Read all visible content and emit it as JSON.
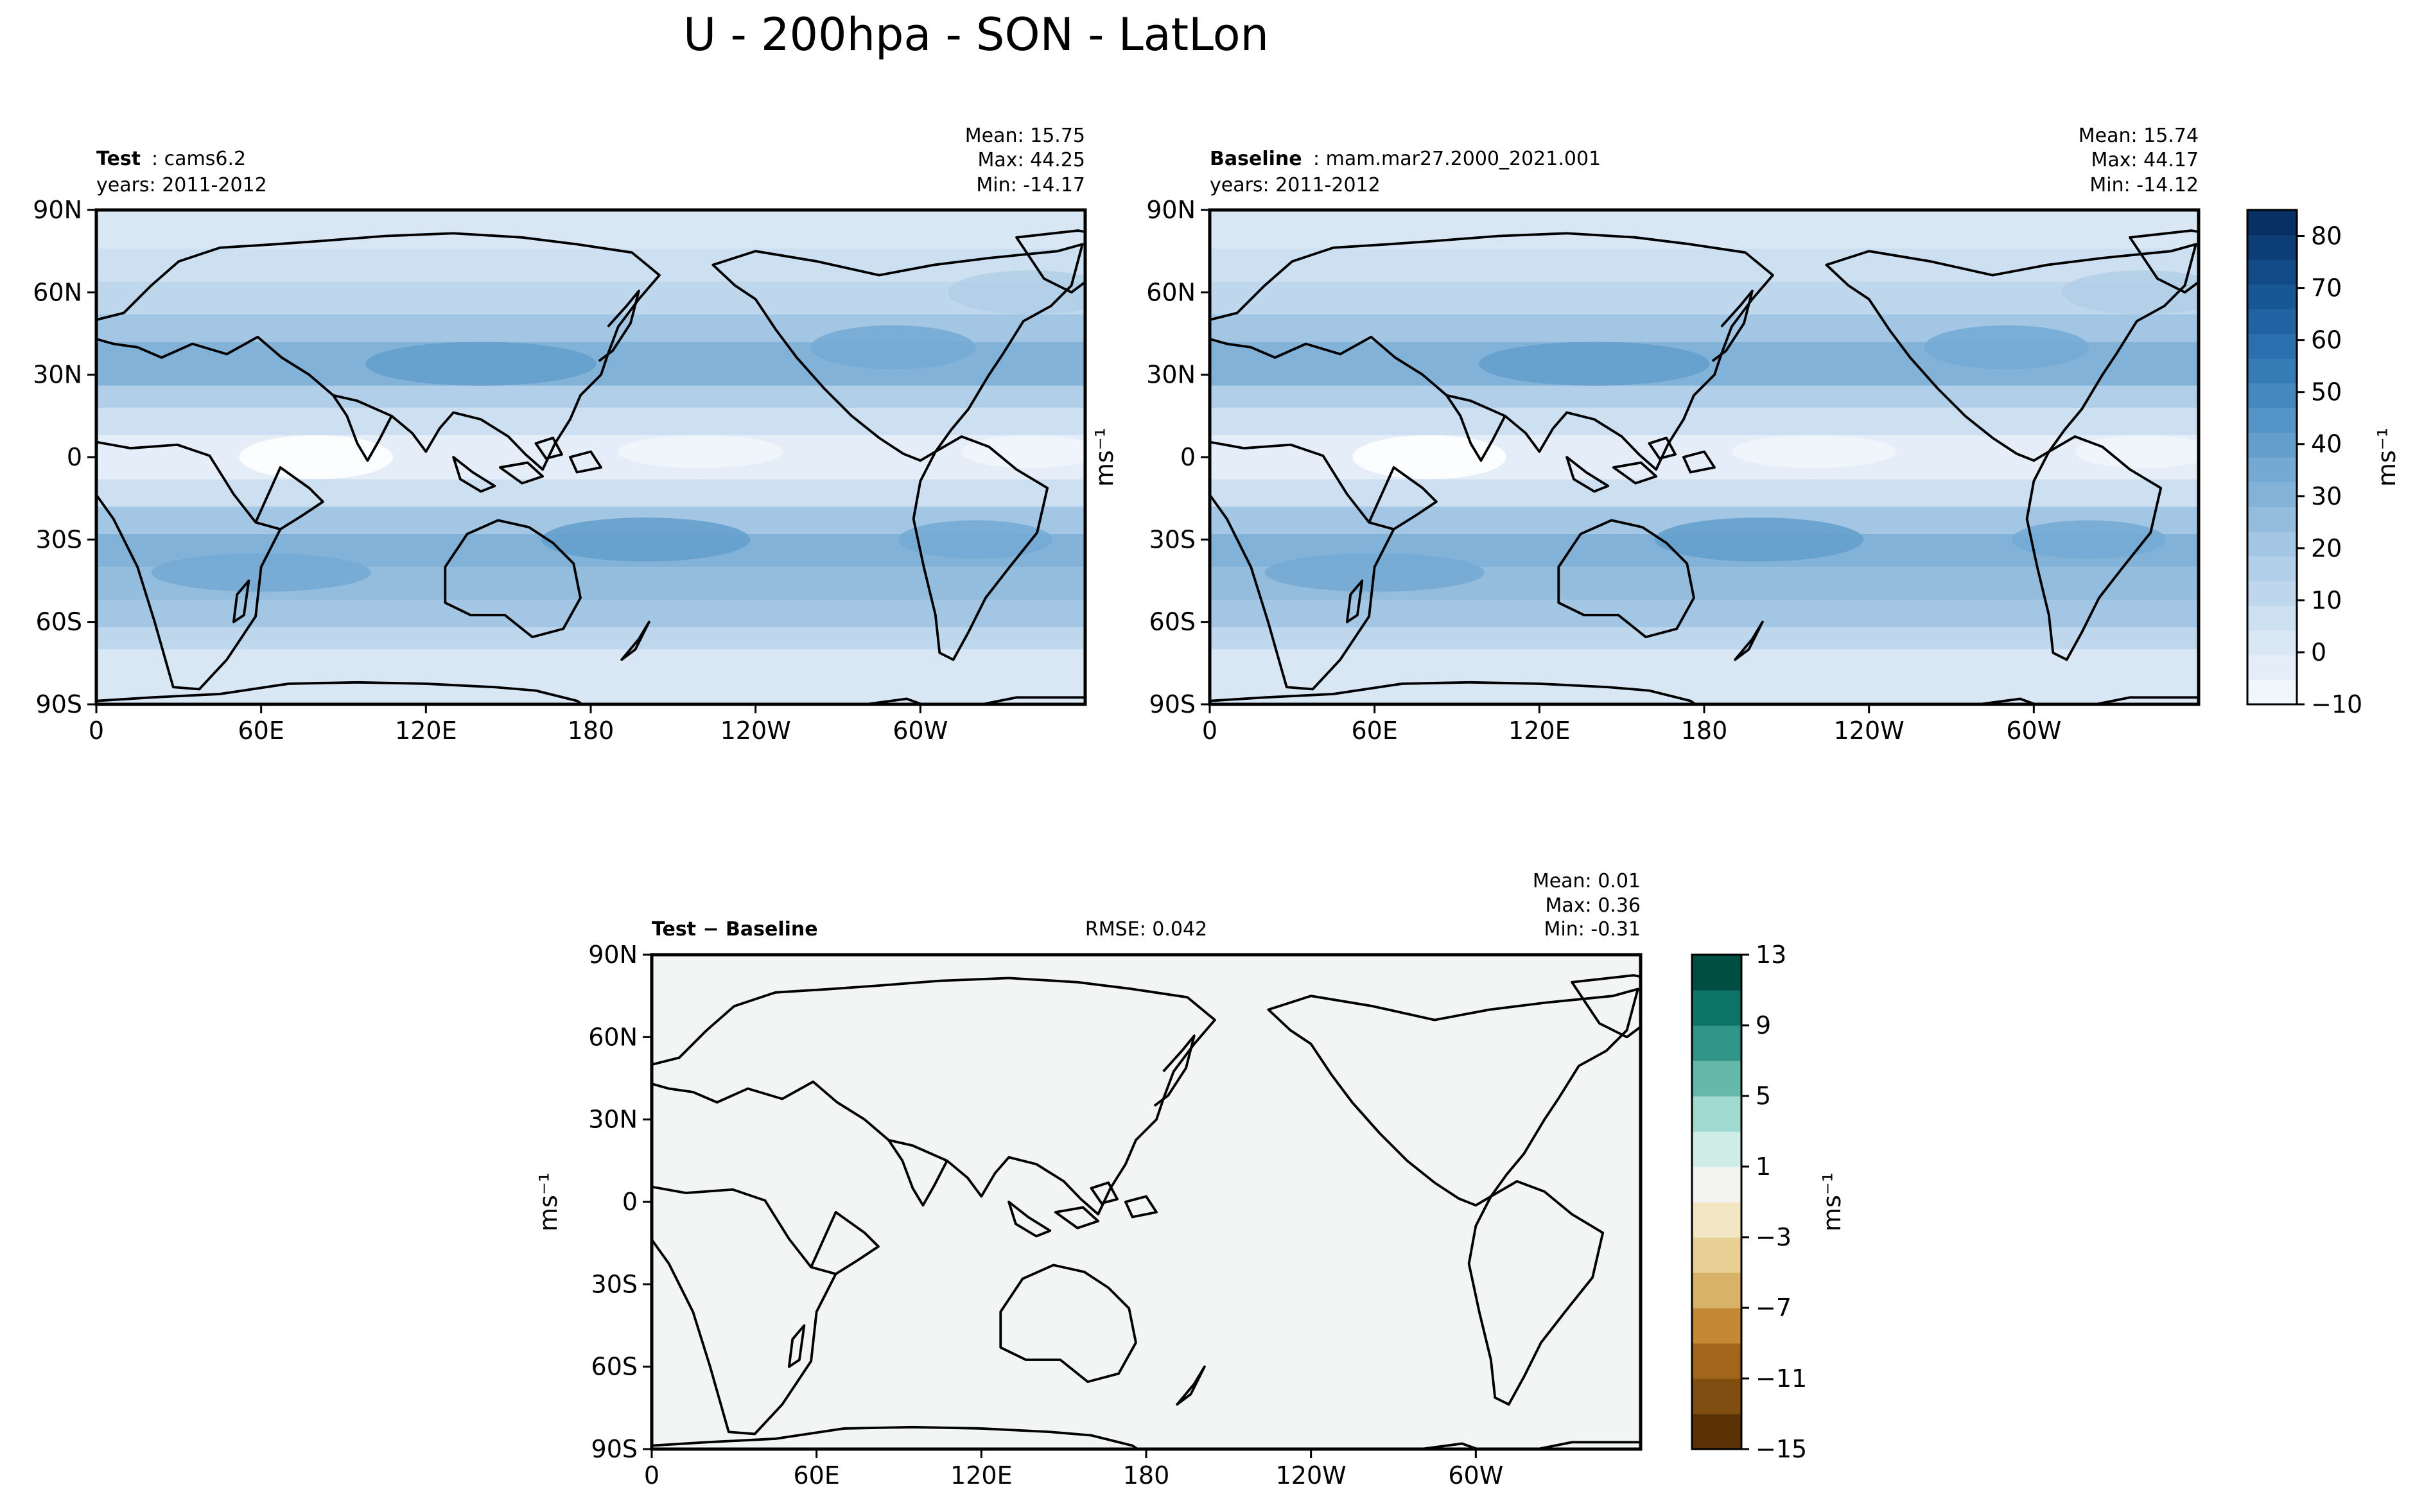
{
  "title": "U - 200hpa - SON - LatLon",
  "colors": {
    "land_outline": "#000000",
    "diff_fill": "#f3f5f4",
    "blue_scale": [
      "#ffffff",
      "#f1f6fc",
      "#e5eef8",
      "#d9e7f5",
      "#cce0f1",
      "#bfd7ed",
      "#b1cfe8",
      "#a2c6e3",
      "#93bcdd",
      "#83b2d8",
      "#73a9d3",
      "#639ecd",
      "#5393c6",
      "#4488bf",
      "#357cb7",
      "#2a70ae",
      "#1f63a3",
      "#175796",
      "#114a87",
      "#0c3d77",
      "#083064"
    ],
    "brbg_scale": [
      "#5b3106",
      "#7f4e10",
      "#a1661b",
      "#c38934",
      "#d8b269",
      "#e8cf93",
      "#f3e6c5",
      "#f3f3f2",
      "#cfece7",
      "#9fd9cf",
      "#66b8aa",
      "#32958a",
      "#0e7468",
      "#004e41"
    ]
  },
  "chart_data": [
    {
      "id": "test",
      "type": "heatmap",
      "label_bold": "Test",
      "label_rest": ": cams6.2",
      "years": "years: 2011-2012",
      "stats": [
        "Mean: 15.75",
        "Max: 44.25",
        "Min: -14.17"
      ],
      "x_ticks": [
        "0",
        "60E",
        "120E",
        "180",
        "120W",
        "60W"
      ],
      "y_ticks": [
        "90N",
        "60N",
        "30N",
        "0",
        "30S",
        "60S",
        "90S"
      ],
      "xlim": [
        0,
        360
      ],
      "ylim": [
        -90,
        90
      ],
      "bands": [
        {
          "lat": [
            -90,
            -70
          ],
          "u": 2
        },
        {
          "lat": [
            -70,
            -62
          ],
          "u": 12
        },
        {
          "lat": [
            -62,
            -52
          ],
          "u": 22
        },
        {
          "lat": [
            -52,
            -40
          ],
          "u": 30
        },
        {
          "lat": [
            -40,
            -28
          ],
          "u": 33
        },
        {
          "lat": [
            -28,
            -18
          ],
          "u": 24
        },
        {
          "lat": [
            -18,
            -8
          ],
          "u": 10
        },
        {
          "lat": [
            -8,
            8
          ],
          "u": 1
        },
        {
          "lat": [
            8,
            18
          ],
          "u": 8
        },
        {
          "lat": [
            18,
            26
          ],
          "u": 20
        },
        {
          "lat": [
            26,
            42
          ],
          "u": 32
        },
        {
          "lat": [
            42,
            52
          ],
          "u": 22
        },
        {
          "lat": [
            52,
            64
          ],
          "u": 16
        },
        {
          "lat": [
            64,
            76
          ],
          "u": 10
        },
        {
          "lat": [
            76,
            90
          ],
          "u": 4
        }
      ],
      "blobs": [
        {
          "lon": 140,
          "lat": 34,
          "rx": 42,
          "ry": 8,
          "u": 44
        },
        {
          "lon": 200,
          "lat": -30,
          "rx": 38,
          "ry": 8,
          "u": 40
        },
        {
          "lon": 320,
          "lat": -30,
          "rx": 28,
          "ry": 7,
          "u": 38
        },
        {
          "lon": 290,
          "lat": 40,
          "rx": 30,
          "ry": 8,
          "u": 36
        },
        {
          "lon": 80,
          "lat": 0,
          "rx": 28,
          "ry": 8,
          "u": -12
        },
        {
          "lon": 220,
          "lat": 2,
          "rx": 30,
          "ry": 6,
          "u": -6
        },
        {
          "lon": 340,
          "lat": 2,
          "rx": 25,
          "ry": 6,
          "u": -4
        },
        {
          "lon": 60,
          "lat": -42,
          "rx": 40,
          "ry": 7,
          "u": 36
        },
        {
          "lon": 340,
          "lat": 60,
          "rx": 30,
          "ry": 8,
          "u": 20
        }
      ]
    },
    {
      "id": "baseline",
      "type": "heatmap",
      "label_bold": "Baseline",
      "label_rest": ": mam.mar27.2000_2021.001",
      "years": "years: 2011-2012",
      "stats": [
        "Mean: 15.74",
        "Max: 44.17",
        "Min: -14.12"
      ],
      "x_ticks": [
        "0",
        "60E",
        "120E",
        "180",
        "120W",
        "60W"
      ],
      "y_ticks": [
        "90N",
        "60N",
        "30N",
        "0",
        "30S",
        "60S",
        "90S"
      ],
      "xlim": [
        0,
        360
      ],
      "ylim": [
        -90,
        90
      ],
      "ylabel": "ms⁻¹",
      "colorbar": {
        "label": "ms⁻¹",
        "range": [
          -10,
          85
        ],
        "ticks": [
          "80",
          "70",
          "60",
          "50",
          "40",
          "30",
          "20",
          "10",
          "0",
          "−10"
        ],
        "tick_values": [
          80,
          70,
          60,
          50,
          40,
          30,
          20,
          10,
          0,
          -10
        ]
      }
    },
    {
      "id": "difference",
      "type": "heatmap",
      "label_bold": "Test − Baseline",
      "rmse": "RMSE: 0.042",
      "stats": [
        "Mean:  0.01",
        "Max:  0.36",
        "Min: -0.31"
      ],
      "x_ticks": [
        "0",
        "60E",
        "120E",
        "180",
        "120W",
        "60W"
      ],
      "y_ticks": [
        "90N",
        "60N",
        "30N",
        "0",
        "30S",
        "60S",
        "90S"
      ],
      "xlim": [
        0,
        360
      ],
      "ylim": [
        -90,
        90
      ],
      "ylabel": "ms⁻¹",
      "colorbar": {
        "label": "ms⁻¹",
        "range": [
          -15,
          13
        ],
        "ticks": [
          "13",
          "9",
          "5",
          "1",
          "−3",
          "−7",
          "−11",
          "−15"
        ],
        "tick_values": [
          13,
          9,
          5,
          1,
          -3,
          -7,
          -11,
          -15
        ]
      }
    }
  ]
}
